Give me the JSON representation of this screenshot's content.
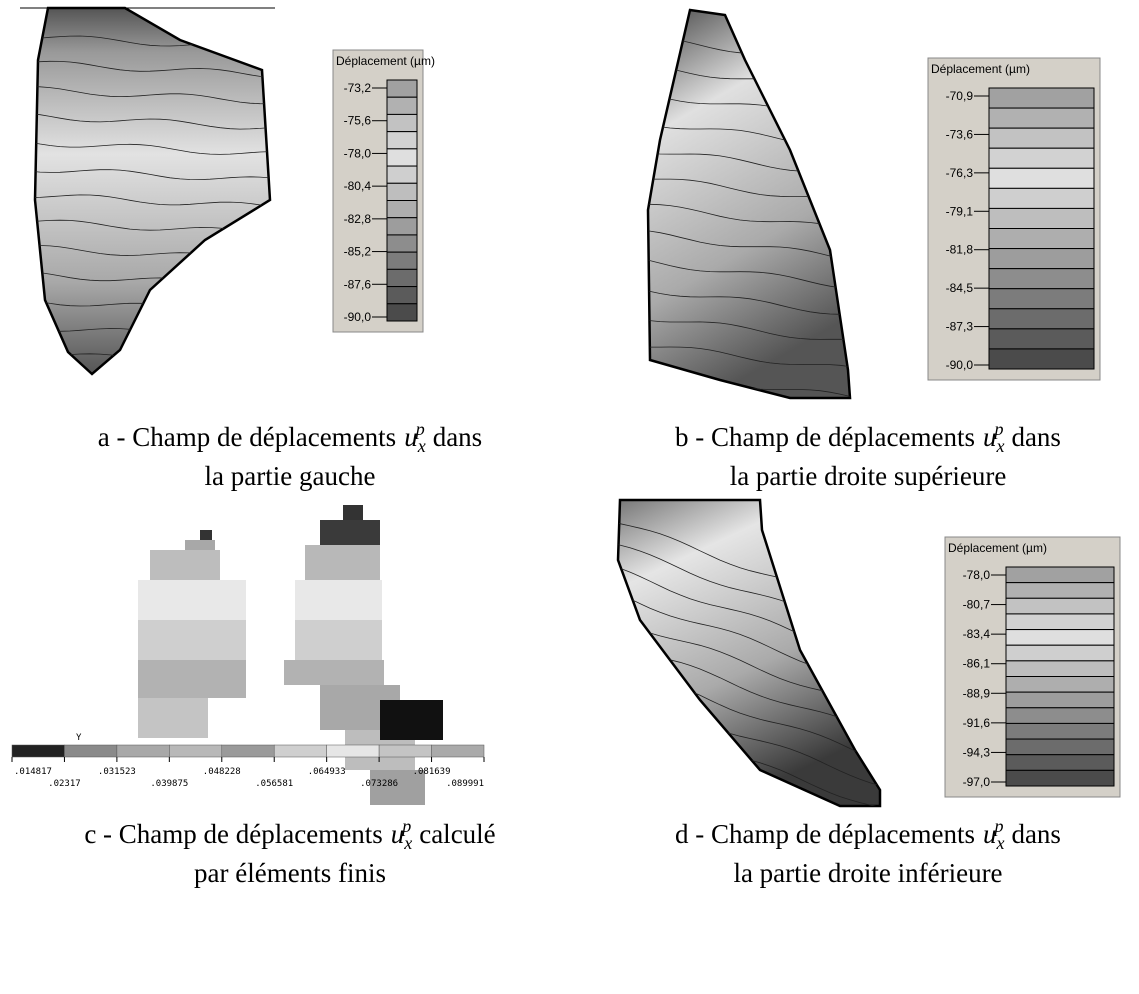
{
  "panels": [
    {
      "legend": {
        "title": "Déplacement (µm)",
        "ticks": [
          "-73,2",
          "-75,6",
          "-78,0",
          "-80,4",
          "-82,8",
          "-85,2",
          "-87,6",
          "-90,0"
        ]
      },
      "caption": {
        "prefix": "a - Champ de déplacements",
        "var": "u",
        "sub": "x",
        "sup": "p",
        "suffix": "dans",
        "line2": "la partie gauche"
      }
    },
    {
      "legend": {
        "title": "Déplacement (µm)",
        "ticks": [
          "-70,9",
          "-73,6",
          "-76,3",
          "-79,1",
          "-81,8",
          "-84,5",
          "-87,3",
          "-90,0"
        ]
      },
      "caption": {
        "prefix": "b - Champ de déplacements",
        "var": "u",
        "sub": "x",
        "sup": "p",
        "suffix": "dans",
        "line2": "la partie droite supérieure"
      }
    },
    {
      "axis_label": "Y",
      "colorbar_labels": [
        ".014817",
        ".02317",
        ".031523",
        ".039875",
        ".048228",
        ".056581",
        ".064933",
        ".073286",
        ".081639",
        ".089991"
      ],
      "caption": {
        "prefix": "c - Champ de déplacements",
        "var": "u",
        "sub": "x",
        "sup": "p",
        "suffix": "calculé",
        "line2": "par éléments finis"
      }
    },
    {
      "legend": {
        "title": "Déplacement (µm)",
        "ticks": [
          "-78,0",
          "-80,7",
          "-83,4",
          "-86,1",
          "-88,9",
          "-91,6",
          "-94,3",
          "-97,0"
        ]
      },
      "caption": {
        "prefix": "d - Champ de déplacements",
        "var": "u",
        "sub": "x",
        "sup": "p",
        "suffix": "dans",
        "line2": "la partie droite inférieure"
      }
    }
  ]
}
